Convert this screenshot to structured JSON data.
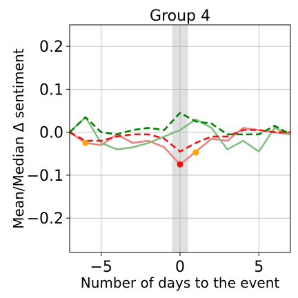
{
  "chart_data": {
    "type": "line",
    "title": "Group 4",
    "xlabel": "Number of days to the event",
    "ylabel": "Mean/Median Δ sentiment",
    "xlim": [
      -7,
      7
    ],
    "ylim": [
      -0.28,
      0.25
    ],
    "xticks": [
      -5,
      0,
      5
    ],
    "xtick_labels": [
      "−5",
      "0",
      "5"
    ],
    "yticks": [
      0.2,
      0.1,
      0.0,
      -0.1,
      -0.2
    ],
    "ytick_labels": [
      "0.2",
      "0.1",
      "0.0",
      "−0.1",
      "−0.2"
    ],
    "grid": true,
    "highlight_band": [
      -0.5,
      0.5
    ],
    "x": [
      -7,
      -6,
      -5,
      -4,
      -3,
      -2,
      -1,
      0,
      1,
      2,
      3,
      4,
      5,
      6,
      7
    ],
    "series": [
      {
        "style": "solid",
        "color": "#f08080",
        "values": [
          0.0,
          -0.025,
          -0.03,
          -0.005,
          -0.025,
          -0.02,
          -0.035,
          -0.075,
          -0.045,
          -0.015,
          -0.02,
          0.01,
          0.005,
          0.0,
          -0.005
        ]
      },
      {
        "style": "solid",
        "color": "#7fbf7f",
        "values": [
          0.0,
          0.035,
          -0.025,
          -0.04,
          -0.035,
          -0.025,
          -0.01,
          0.005,
          0.03,
          0.01,
          -0.04,
          -0.02,
          -0.045,
          0.01,
          -0.005
        ]
      },
      {
        "style": "dashed",
        "color": "#ee1111",
        "values": [
          0.0,
          -0.02,
          -0.02,
          -0.01,
          -0.005,
          -0.005,
          -0.015,
          -0.045,
          -0.025,
          -0.01,
          -0.01,
          0.005,
          0.005,
          0.0,
          0.0
        ]
      },
      {
        "style": "dashed",
        "color": "#008000",
        "values": [
          0.0,
          0.035,
          0.0,
          -0.005,
          0.005,
          0.01,
          0.005,
          0.045,
          0.025,
          0.02,
          -0.005,
          -0.005,
          -0.005,
          0.015,
          -0.005
        ]
      }
    ],
    "markers": [
      {
        "x": -6,
        "y": -0.025,
        "color": "#ffa500"
      },
      {
        "x": 0,
        "y": -0.075,
        "color": "#ee1111"
      },
      {
        "x": 1,
        "y": -0.047,
        "color": "#ffa500"
      }
    ]
  }
}
